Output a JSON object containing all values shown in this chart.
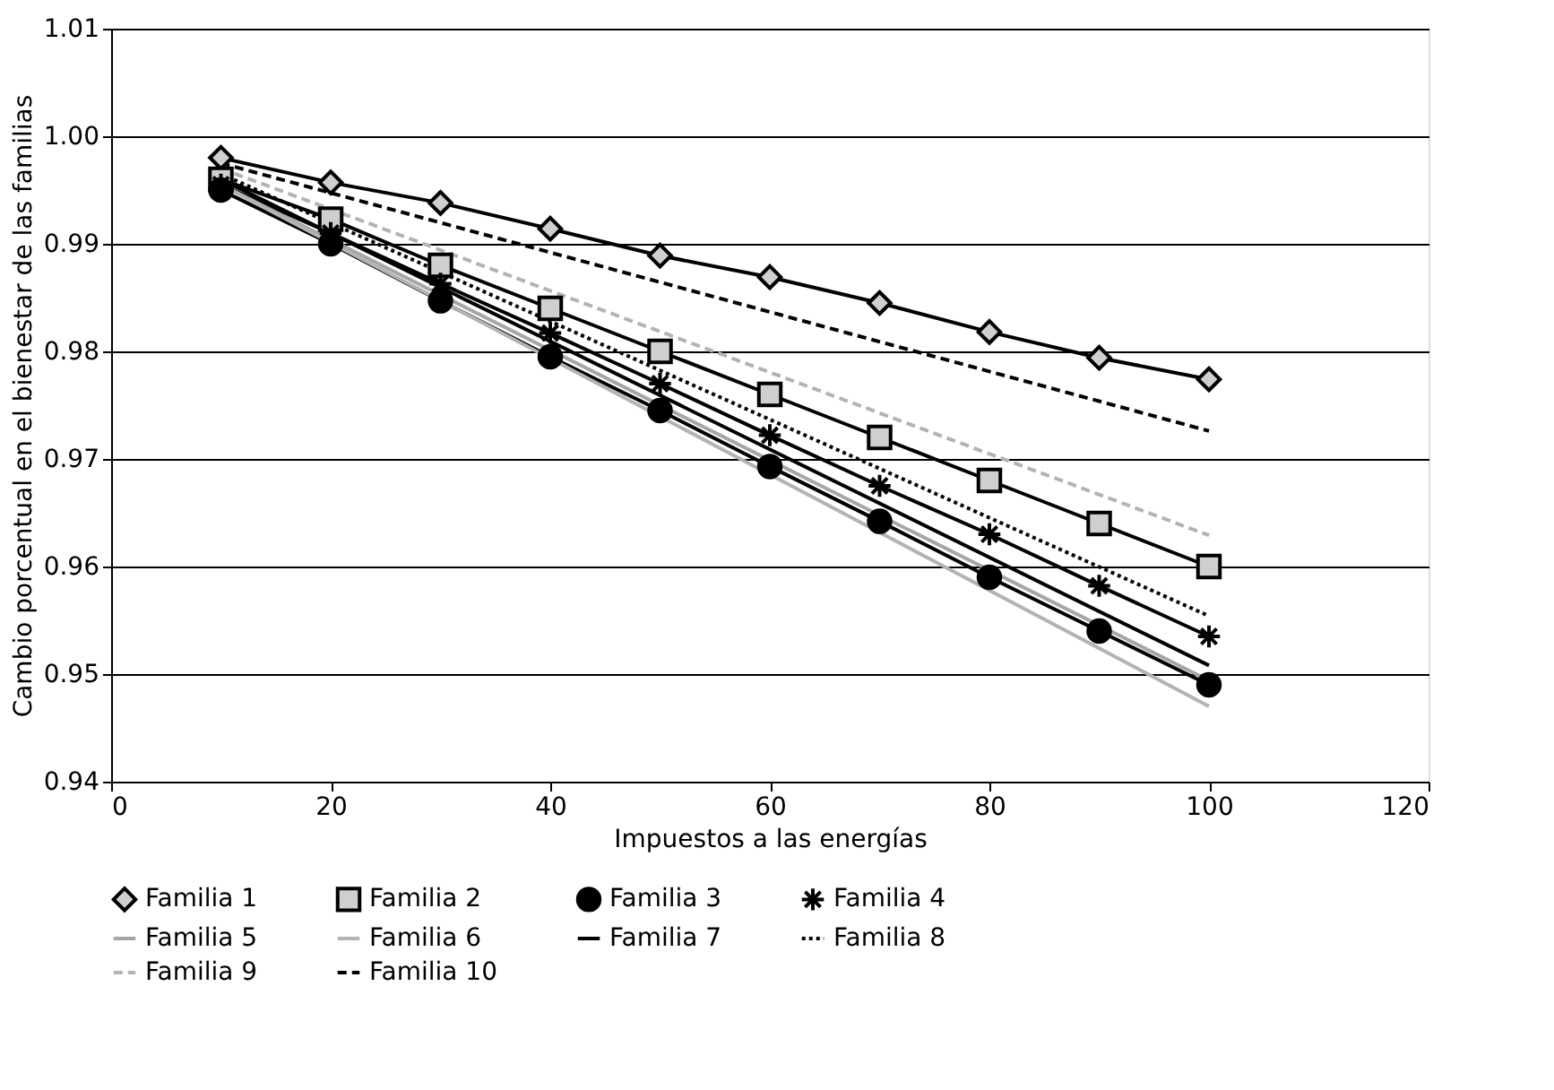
{
  "chart_data": {
    "type": "line",
    "xlabel": "Impuestos a las energías",
    "ylabel": "Cambio porcentual en el bienestar de las familias",
    "xlim": [
      0,
      120
    ],
    "xticks": [
      0,
      20,
      40,
      60,
      80,
      100,
      120
    ],
    "ylim": [
      0.94,
      1.01
    ],
    "yticks": [
      0.94,
      0.95,
      0.96,
      0.97,
      0.98,
      0.99,
      {
        "value": 1.0,
        "label": "1.00"
      },
      1.01
    ],
    "grid": "y",
    "legend": "bottom",
    "series": [
      {
        "name": "Familia 1",
        "color": "#000000",
        "marker": "diamond",
        "line_style": "solid",
        "x": [
          10,
          20,
          30,
          40,
          50,
          60,
          70,
          80,
          90,
          100
        ],
        "values": [
          0.998,
          0.9957,
          0.9938,
          0.9914,
          0.9889,
          0.9869,
          0.9845,
          0.9818,
          0.9794,
          0.9774
        ]
      },
      {
        "name": "Familia 2",
        "color": "#000000",
        "marker": "square",
        "line_style": "solid",
        "x": [
          10,
          20,
          30,
          40,
          50,
          60,
          70,
          80,
          90,
          100
        ],
        "values": [
          0.996,
          0.9923,
          0.988,
          0.984,
          0.98,
          0.976,
          0.972,
          0.968,
          0.964,
          0.96
        ]
      },
      {
        "name": "Familia 3",
        "color": "#000000",
        "marker": "circle",
        "line_style": "solid",
        "x": [
          10,
          20,
          30,
          40,
          50,
          60,
          70,
          80,
          90,
          100
        ],
        "values": [
          0.995,
          0.99,
          0.9847,
          0.9795,
          0.9745,
          0.9693,
          0.9642,
          0.959,
          0.954,
          0.949
        ]
      },
      {
        "name": "Familia 4",
        "color": "#000000",
        "marker": "cross",
        "line_style": "solid",
        "x": [
          10,
          20,
          30,
          40,
          50,
          60,
          70,
          80,
          90,
          100
        ],
        "values": [
          0.9955,
          0.991,
          0.9863,
          0.9817,
          0.977,
          0.9722,
          0.9675,
          0.963,
          0.9582,
          0.9535
        ]
      },
      {
        "name": "Familia 5",
        "color": "#a6a6a6",
        "marker": "none",
        "line_style": "solid",
        "x": [
          10,
          100
        ],
        "values": [
          0.9955,
          0.9494
        ]
      },
      {
        "name": "Familia 6",
        "color": "#b3b3b3",
        "marker": "none",
        "line_style": "solid",
        "x": [
          10,
          100
        ],
        "values": [
          0.9955,
          0.947
        ]
      },
      {
        "name": "Familia 7",
        "color": "#000000",
        "marker": "none",
        "line_style": "solid",
        "x": [
          10,
          100
        ],
        "values": [
          0.996,
          0.9508
        ]
      },
      {
        "name": "Familia 8",
        "color": "#000000",
        "marker": "none",
        "line_style": "dotted",
        "x": [
          10,
          100
        ],
        "values": [
          0.9965,
          0.9554
        ]
      },
      {
        "name": "Familia 9",
        "color": "#b3b3b3",
        "marker": "none",
        "line_style": "dashed",
        "x": [
          10,
          100
        ],
        "values": [
          0.997,
          0.9629
        ]
      },
      {
        "name": "Familia 10",
        "color": "#000000",
        "marker": "none",
        "line_style": "dashed",
        "x": [
          10,
          100
        ],
        "values": [
          0.9975,
          0.9726
        ]
      }
    ]
  }
}
